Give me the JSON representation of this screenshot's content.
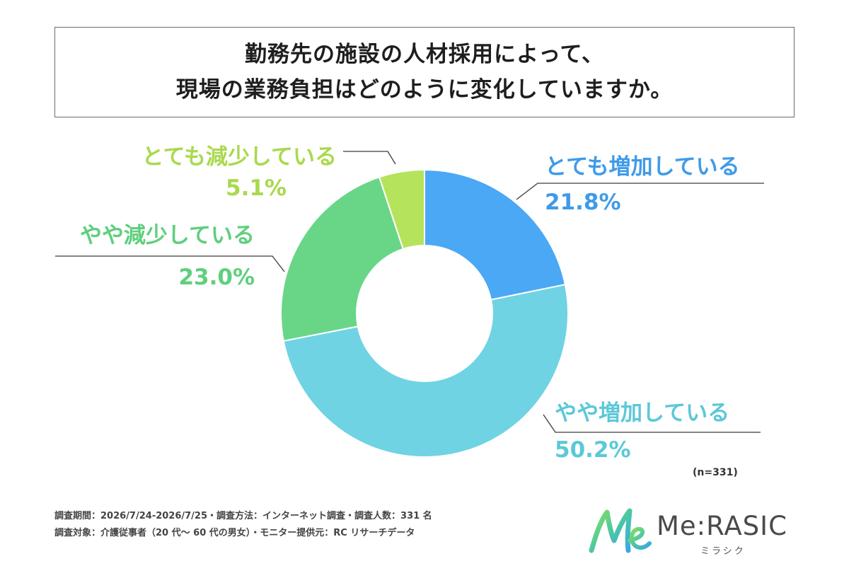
{
  "title": {
    "line1": "勤務先の施設の人材採用によって、",
    "line2": "現場の業務負担はどのように変化していますか。"
  },
  "chart_data": {
    "type": "donut",
    "categories": [
      "とても増加している",
      "やや増加している",
      "やや減少している",
      "とても減少している"
    ],
    "values": [
      21.8,
      50.2,
      23.0,
      5.1
    ],
    "value_labels": [
      "21.8%",
      "50.2%",
      "23.0%",
      "5.1%"
    ],
    "colors": [
      "#4aa8f5",
      "#6fd3e3",
      "#69d687",
      "#b5e35b"
    ],
    "label_colors": [
      "#3f9be8",
      "#5cc8d8",
      "#5fcf7d",
      "#a9d94e"
    ],
    "n_label": "(n=331)"
  },
  "footer": {
    "line1": "調査期間：2026/7/24-2026/7/25・調査方法：インターネット調査・調査人数：331 名",
    "line2": "調査対象：介護従事者（20 代～ 60 代の男女）・モニター提供元：RC リサーチデータ"
  },
  "brand": {
    "name": "Me:RASIC",
    "kana": "ミラシク"
  }
}
